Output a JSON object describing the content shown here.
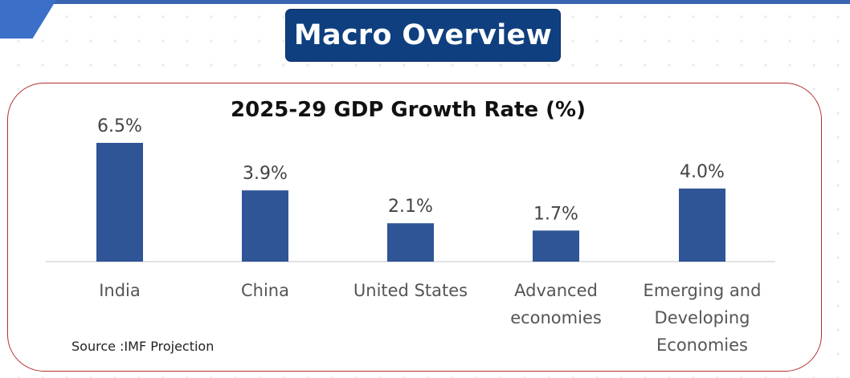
{
  "header": {
    "title": "Macro Overview"
  },
  "colors": {
    "bar": "#2f5597",
    "title_box": "#0f3f7f",
    "panel_border": "#b42d2d"
  },
  "chart_data": {
    "type": "bar",
    "title": "2025-29 GDP Growth Rate (%)",
    "categories": [
      [
        "India"
      ],
      [
        "China"
      ],
      [
        "United States"
      ],
      [
        "Advanced",
        "economies"
      ],
      [
        "Emerging and",
        "Developing",
        "Economies"
      ]
    ],
    "values": [
      6.5,
      3.9,
      2.1,
      1.7,
      4.0
    ],
    "data_labels": [
      "6.5%",
      "3.9%",
      "2.1%",
      "1.7%",
      "4.0%"
    ],
    "xlabel": "",
    "ylabel": "",
    "grid": false,
    "legend": "none"
  },
  "source": "Source :IMF Projection"
}
